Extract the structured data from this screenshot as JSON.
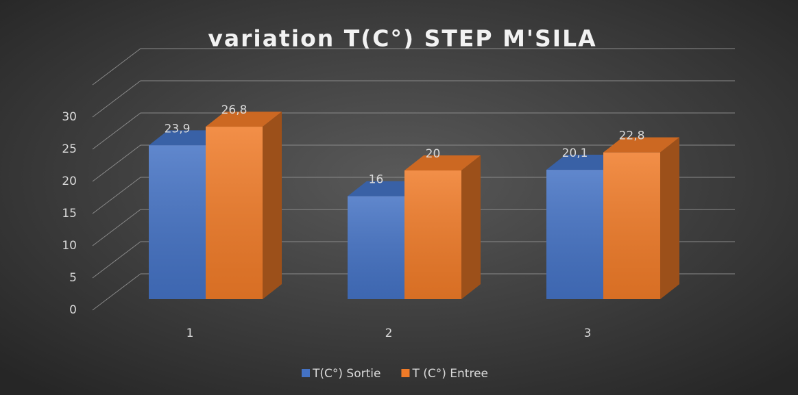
{
  "chart_data": {
    "type": "bar3d",
    "title": "variation T(C°) STEP M'SILA",
    "categories": [
      "1",
      "2",
      "3"
    ],
    "series": [
      {
        "name": "T(C°) Sortie",
        "color": "#4472c4",
        "values": [
          23.9,
          16,
          20.1
        ],
        "value_labels": [
          "23,9",
          "16",
          "20,1"
        ]
      },
      {
        "name": "T (C°) Entree",
        "color": "#f07b28",
        "values": [
          26.8,
          20,
          22.8
        ],
        "value_labels": [
          "26,8",
          "20",
          "22,8"
        ]
      }
    ],
    "ylim": [
      0,
      35
    ],
    "yticks": [
      0,
      5,
      10,
      15,
      20,
      25,
      30
    ],
    "grid": true,
    "legend": "bottom"
  }
}
